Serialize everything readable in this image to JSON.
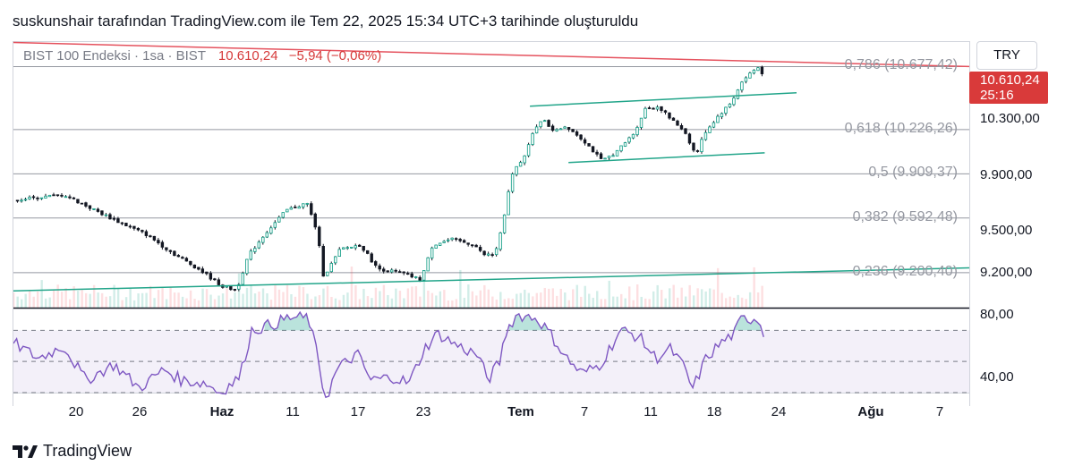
{
  "header": {
    "text": "suskunshair tarafından TradingView.com ile Tem 22, 2025 15:34 UTC+3 tarihinde oluşturuldu"
  },
  "symbol": {
    "name": "BIST 100 Endeksi · 1sa · BIST",
    "last": "10.610,24",
    "change": "−5,94 (−0,06%)"
  },
  "currency": "TRY",
  "last_tag": {
    "price": "10.610,24",
    "countdown": "25:16"
  },
  "footer": {
    "brand": "TradingView"
  },
  "colors": {
    "bull": "#089981",
    "bear": "#f23645",
    "rsi": "#7e57c2",
    "channel": "#22a58a",
    "resistance": "#e5525e",
    "fib": "#9598a1"
  },
  "icons": {
    "logo": "tradingview-logo-icon"
  },
  "chart_data": [
    {
      "type": "candlestick",
      "title": "BIST 100 Endeksi · 1sa · BIST",
      "x_tick_labels": [
        "20",
        "26",
        "Haz",
        "11",
        "17",
        "23",
        "Tem",
        "7",
        "11",
        "18",
        "24",
        "Ağu",
        "7"
      ],
      "bold_ticks": [
        "Haz",
        "Tem",
        "Ağu"
      ],
      "y_tick_labels": [
        "10.300,00",
        "9.900,00",
        "9.500,00",
        "9.200,00"
      ],
      "y_ticks": [
        10300,
        9900,
        9500,
        9200
      ],
      "ylim": [
        8950,
        10860
      ],
      "price_path": [
        {
          "t": 0,
          "v": 9720
        },
        {
          "t": 3,
          "v": 9760
        },
        {
          "t": 4,
          "v": 9700
        },
        {
          "t": 6,
          "v": 9580
        },
        {
          "t": 8,
          "v": 9470
        },
        {
          "t": 9.5,
          "v": 9340
        },
        {
          "t": 11,
          "v": 9230
        },
        {
          "t": 12.5,
          "v": 9100
        },
        {
          "t": 13.3,
          "v": 9075
        },
        {
          "t": 14,
          "v": 9320
        },
        {
          "t": 15,
          "v": 9480
        },
        {
          "t": 16.3,
          "v": 9650
        },
        {
          "t": 17.5,
          "v": 9700
        },
        {
          "t": 18.1,
          "v": 9500
        },
        {
          "t": 18.5,
          "v": 9170
        },
        {
          "t": 19.5,
          "v": 9370
        },
        {
          "t": 20.7,
          "v": 9400
        },
        {
          "t": 21.7,
          "v": 9230
        },
        {
          "t": 23.1,
          "v": 9200
        },
        {
          "t": 24.3,
          "v": 9150
        },
        {
          "t": 25,
          "v": 9400
        },
        {
          "t": 26.1,
          "v": 9440
        },
        {
          "t": 27.5,
          "v": 9400
        },
        {
          "t": 28,
          "v": 9330
        },
        {
          "t": 28.7,
          "v": 9330
        },
        {
          "t": 29.2,
          "v": 9550
        },
        {
          "t": 29.7,
          "v": 9900
        },
        {
          "t": 30.5,
          "v": 10050
        },
        {
          "t": 31,
          "v": 10200
        },
        {
          "t": 31.6,
          "v": 10320
        },
        {
          "t": 32,
          "v": 10220
        },
        {
          "t": 33,
          "v": 10250
        },
        {
          "t": 34,
          "v": 10150
        },
        {
          "t": 35.1,
          "v": 10000
        },
        {
          "t": 36,
          "v": 10070
        },
        {
          "t": 37,
          "v": 10200
        },
        {
          "t": 37.7,
          "v": 10380
        },
        {
          "t": 38.5,
          "v": 10390
        },
        {
          "t": 39.2,
          "v": 10300
        },
        {
          "t": 40,
          "v": 10220
        },
        {
          "t": 40.7,
          "v": 10040
        },
        {
          "t": 41.2,
          "v": 10200
        },
        {
          "t": 42,
          "v": 10320
        },
        {
          "t": 42.8,
          "v": 10420
        },
        {
          "t": 43.4,
          "v": 10560
        },
        {
          "t": 44,
          "v": 10640
        },
        {
          "t": 44.4,
          "v": 10670
        },
        {
          "t": 44.8,
          "v": 10610
        }
      ],
      "fib_levels": [
        {
          "ratio": "0,786",
          "label": "0,786 (10.677,42)",
          "price": 10677.42
        },
        {
          "ratio": "0,618",
          "label": "0,618 (10.226,26)",
          "price": 10226.26
        },
        {
          "ratio": "0,5",
          "label": "0,5 (9.909,37)",
          "price": 9909.37
        },
        {
          "ratio": "0,382",
          "label": "0,382 (9.592,48)",
          "price": 9592.48
        },
        {
          "ratio": "0,236",
          "label": "0,236 (9.200,40)",
          "price": 9200.4
        }
      ],
      "trendlines": [
        {
          "name": "resistance",
          "from": {
            "t": 0,
            "v": 10850
          },
          "to": {
            "t": 57,
            "v": 10678
          }
        },
        {
          "name": "channel-top",
          "from": {
            "t": 30.8,
            "v": 10394
          },
          "to": {
            "t": 46.7,
            "v": 10490
          }
        },
        {
          "name": "channel-bottom",
          "from": {
            "t": 33.1,
            "v": 9990
          },
          "to": {
            "t": 44.8,
            "v": 10060
          }
        },
        {
          "name": "support",
          "from": {
            "t": 0,
            "v": 9070
          },
          "to": {
            "t": 57,
            "v": 9235
          }
        }
      ]
    },
    {
      "type": "line",
      "y_tick_labels": [
        "80,00",
        "40,00"
      ],
      "y_ticks": [
        80,
        40
      ],
      "ylim": [
        30,
        84
      ],
      "bands": [
        70,
        50,
        30
      ],
      "rsi_path": [
        {
          "t": 0,
          "v": 62
        },
        {
          "t": 1.5,
          "v": 52
        },
        {
          "t": 3,
          "v": 60
        },
        {
          "t": 4.3,
          "v": 38
        },
        {
          "t": 6,
          "v": 48
        },
        {
          "t": 7.5,
          "v": 33
        },
        {
          "t": 9,
          "v": 45
        },
        {
          "t": 10,
          "v": 38
        },
        {
          "t": 11.5,
          "v": 36
        },
        {
          "t": 12.3,
          "v": 30
        },
        {
          "t": 13.5,
          "v": 40
        },
        {
          "t": 14.2,
          "v": 70
        },
        {
          "t": 15.5,
          "v": 74
        },
        {
          "t": 16.4,
          "v": 78
        },
        {
          "t": 17.6,
          "v": 78
        },
        {
          "t": 18.2,
          "v": 50
        },
        {
          "t": 18.6,
          "v": 25
        },
        {
          "t": 19.3,
          "v": 45
        },
        {
          "t": 20.5,
          "v": 55
        },
        {
          "t": 21.3,
          "v": 38
        },
        {
          "t": 22.7,
          "v": 40
        },
        {
          "t": 23.6,
          "v": 36
        },
        {
          "t": 24.5,
          "v": 58
        },
        {
          "t": 25.3,
          "v": 68
        },
        {
          "t": 26.5,
          "v": 60
        },
        {
          "t": 27.7,
          "v": 54
        },
        {
          "t": 28.3,
          "v": 38
        },
        {
          "t": 29,
          "v": 50
        },
        {
          "t": 29.4,
          "v": 70
        },
        {
          "t": 30,
          "v": 80
        },
        {
          "t": 31.2,
          "v": 78
        },
        {
          "t": 32,
          "v": 68
        },
        {
          "t": 33,
          "v": 52
        },
        {
          "t": 33.9,
          "v": 42
        },
        {
          "t": 35,
          "v": 48
        },
        {
          "t": 36.2,
          "v": 70
        },
        {
          "t": 37.3,
          "v": 66
        },
        {
          "t": 38.3,
          "v": 52
        },
        {
          "t": 39.2,
          "v": 58
        },
        {
          "t": 40,
          "v": 46
        },
        {
          "t": 40.5,
          "v": 32
        },
        {
          "t": 41.3,
          "v": 52
        },
        {
          "t": 42.2,
          "v": 62
        },
        {
          "t": 43,
          "v": 68
        },
        {
          "t": 43.4,
          "v": 77
        },
        {
          "t": 44.4,
          "v": 78
        },
        {
          "t": 44.8,
          "v": 66
        }
      ]
    }
  ]
}
